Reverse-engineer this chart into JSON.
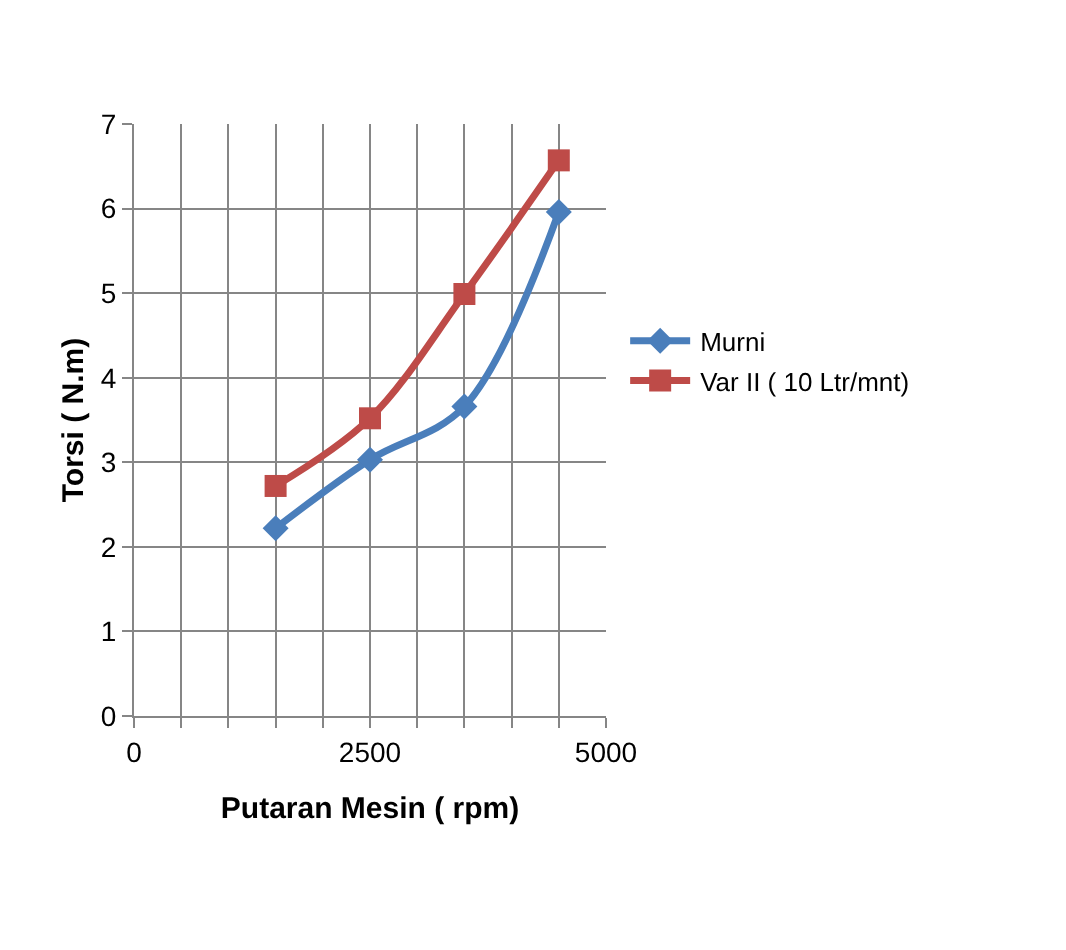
{
  "chart_data": {
    "type": "line",
    "xlabel": "Putaran Mesin ( rpm)",
    "ylabel": "Torsi ( N.m)",
    "x": [
      1500,
      2500,
      3500,
      4500
    ],
    "series": [
      {
        "name": "Murni",
        "color": "#4a7ebb",
        "marker": "diamond",
        "values": [
          2.22,
          3.03,
          3.66,
          5.96
        ]
      },
      {
        "name": "Var II ( 10 Ltr/mnt)",
        "color": "#be4b48",
        "marker": "square",
        "values": [
          2.72,
          3.52,
          4.99,
          6.57
        ]
      }
    ],
    "xlim": [
      0,
      5000
    ],
    "xticks": [
      0,
      {
        "value": 500,
        "label": null
      },
      {
        "value": 1000,
        "label": null
      },
      {
        "value": 1500,
        "label": null
      },
      {
        "value": 2000,
        "label": null
      },
      2500,
      {
        "value": 3000,
        "label": null
      },
      {
        "value": 3500,
        "label": null
      },
      {
        "value": 4000,
        "label": null
      },
      {
        "value": 4500,
        "label": null
      },
      5000
    ],
    "ylim": [
      0,
      7
    ],
    "yticks": [
      0,
      1,
      2,
      3,
      4,
      5,
      6,
      7
    ],
    "grid": true,
    "legend": "right",
    "line_style": "solid"
  }
}
